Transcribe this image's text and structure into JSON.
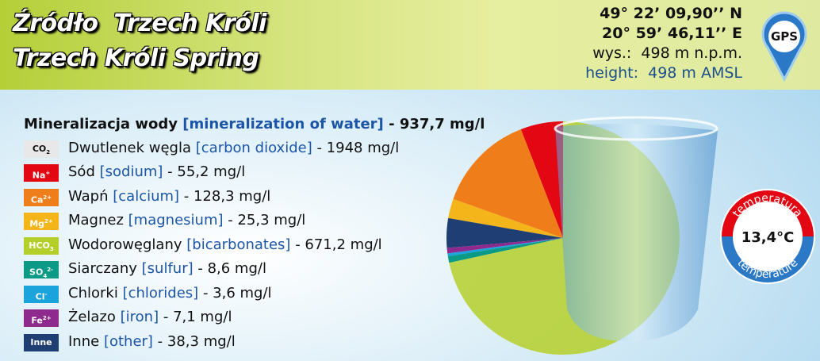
{
  "header": {
    "title": "Źródło  Trzech Króli",
    "subtitle": "Trzech Króli Spring",
    "latitude": "49° 22’ 09,90’’ N",
    "longitude": "20° 59’ 46,11’’ E",
    "altitude_pl": "wys.:  498 m n.p.m.",
    "altitude_en": "height:  498 m AMSL",
    "gps": "GPS"
  },
  "heading": {
    "name": "Mineralizacja wody",
    "name_en": "[mineralization of water]",
    "value_label": "- 937,7 mg/l"
  },
  "carbon_dioxide": {
    "symbol": "CO",
    "sub": "2",
    "name": "Dwutlenek węgla",
    "name_en": "[carbon dioxide]",
    "value_label": "- 1948 mg/l",
    "color": "#e8e8e8"
  },
  "minerals": [
    {
      "symbol": "Na",
      "sup": "+",
      "name": "Sód",
      "name_en": "[sodium]",
      "value": 55.2,
      "value_label": "- 55,2 mg/l",
      "color": "#e30613"
    },
    {
      "symbol": "Ca",
      "sup": "2+",
      "name": "Wapń",
      "name_en": "[calcium]",
      "value": 128.3,
      "value_label": "- 128,3 mg/l",
      "color": "#ef7d1a"
    },
    {
      "symbol": "Mg",
      "sup": "2+",
      "name": "Magnez",
      "name_en": "[magnesium]",
      "value": 25.3,
      "value_label": "- 25,3 mg/l",
      "color": "#f4b51a"
    },
    {
      "symbol": "HCO",
      "sub": "3",
      "name": "Wodorowęglany",
      "name_en": "[bicarbonates]",
      "value": 671.2,
      "value_label": "- 671,2 mg/l",
      "color": "#b5cf2a"
    },
    {
      "symbol": "SO",
      "sub": "4",
      "sup": "2-",
      "name": "Siarczany",
      "name_en": "[sulfur]",
      "value": 8.6,
      "value_label": "- 8,6 mg/l",
      "color": "#0a9a86"
    },
    {
      "symbol": "Cl",
      "sup": "-",
      "name": "Chlorki",
      "name_en": "[chlorides]",
      "value": 3.6,
      "value_label": "- 3,6 mg/l",
      "color": "#1ba3dc"
    },
    {
      "symbol": "Fe",
      "sup": "2+",
      "name": "Żelazo",
      "name_en": "[iron]",
      "value": 7.1,
      "value_label": "- 7,1 mg/l",
      "color": "#8e2a8e"
    },
    {
      "symbol": "Inne",
      "name": "Inne",
      "name_en": "[other]",
      "value": 38.3,
      "value_label": "- 38,3 mg/l",
      "color": "#1f3f74"
    }
  ],
  "temperature": {
    "top": "temperatura",
    "value_label": "13,4°C",
    "bottom": "temperature"
  }
}
